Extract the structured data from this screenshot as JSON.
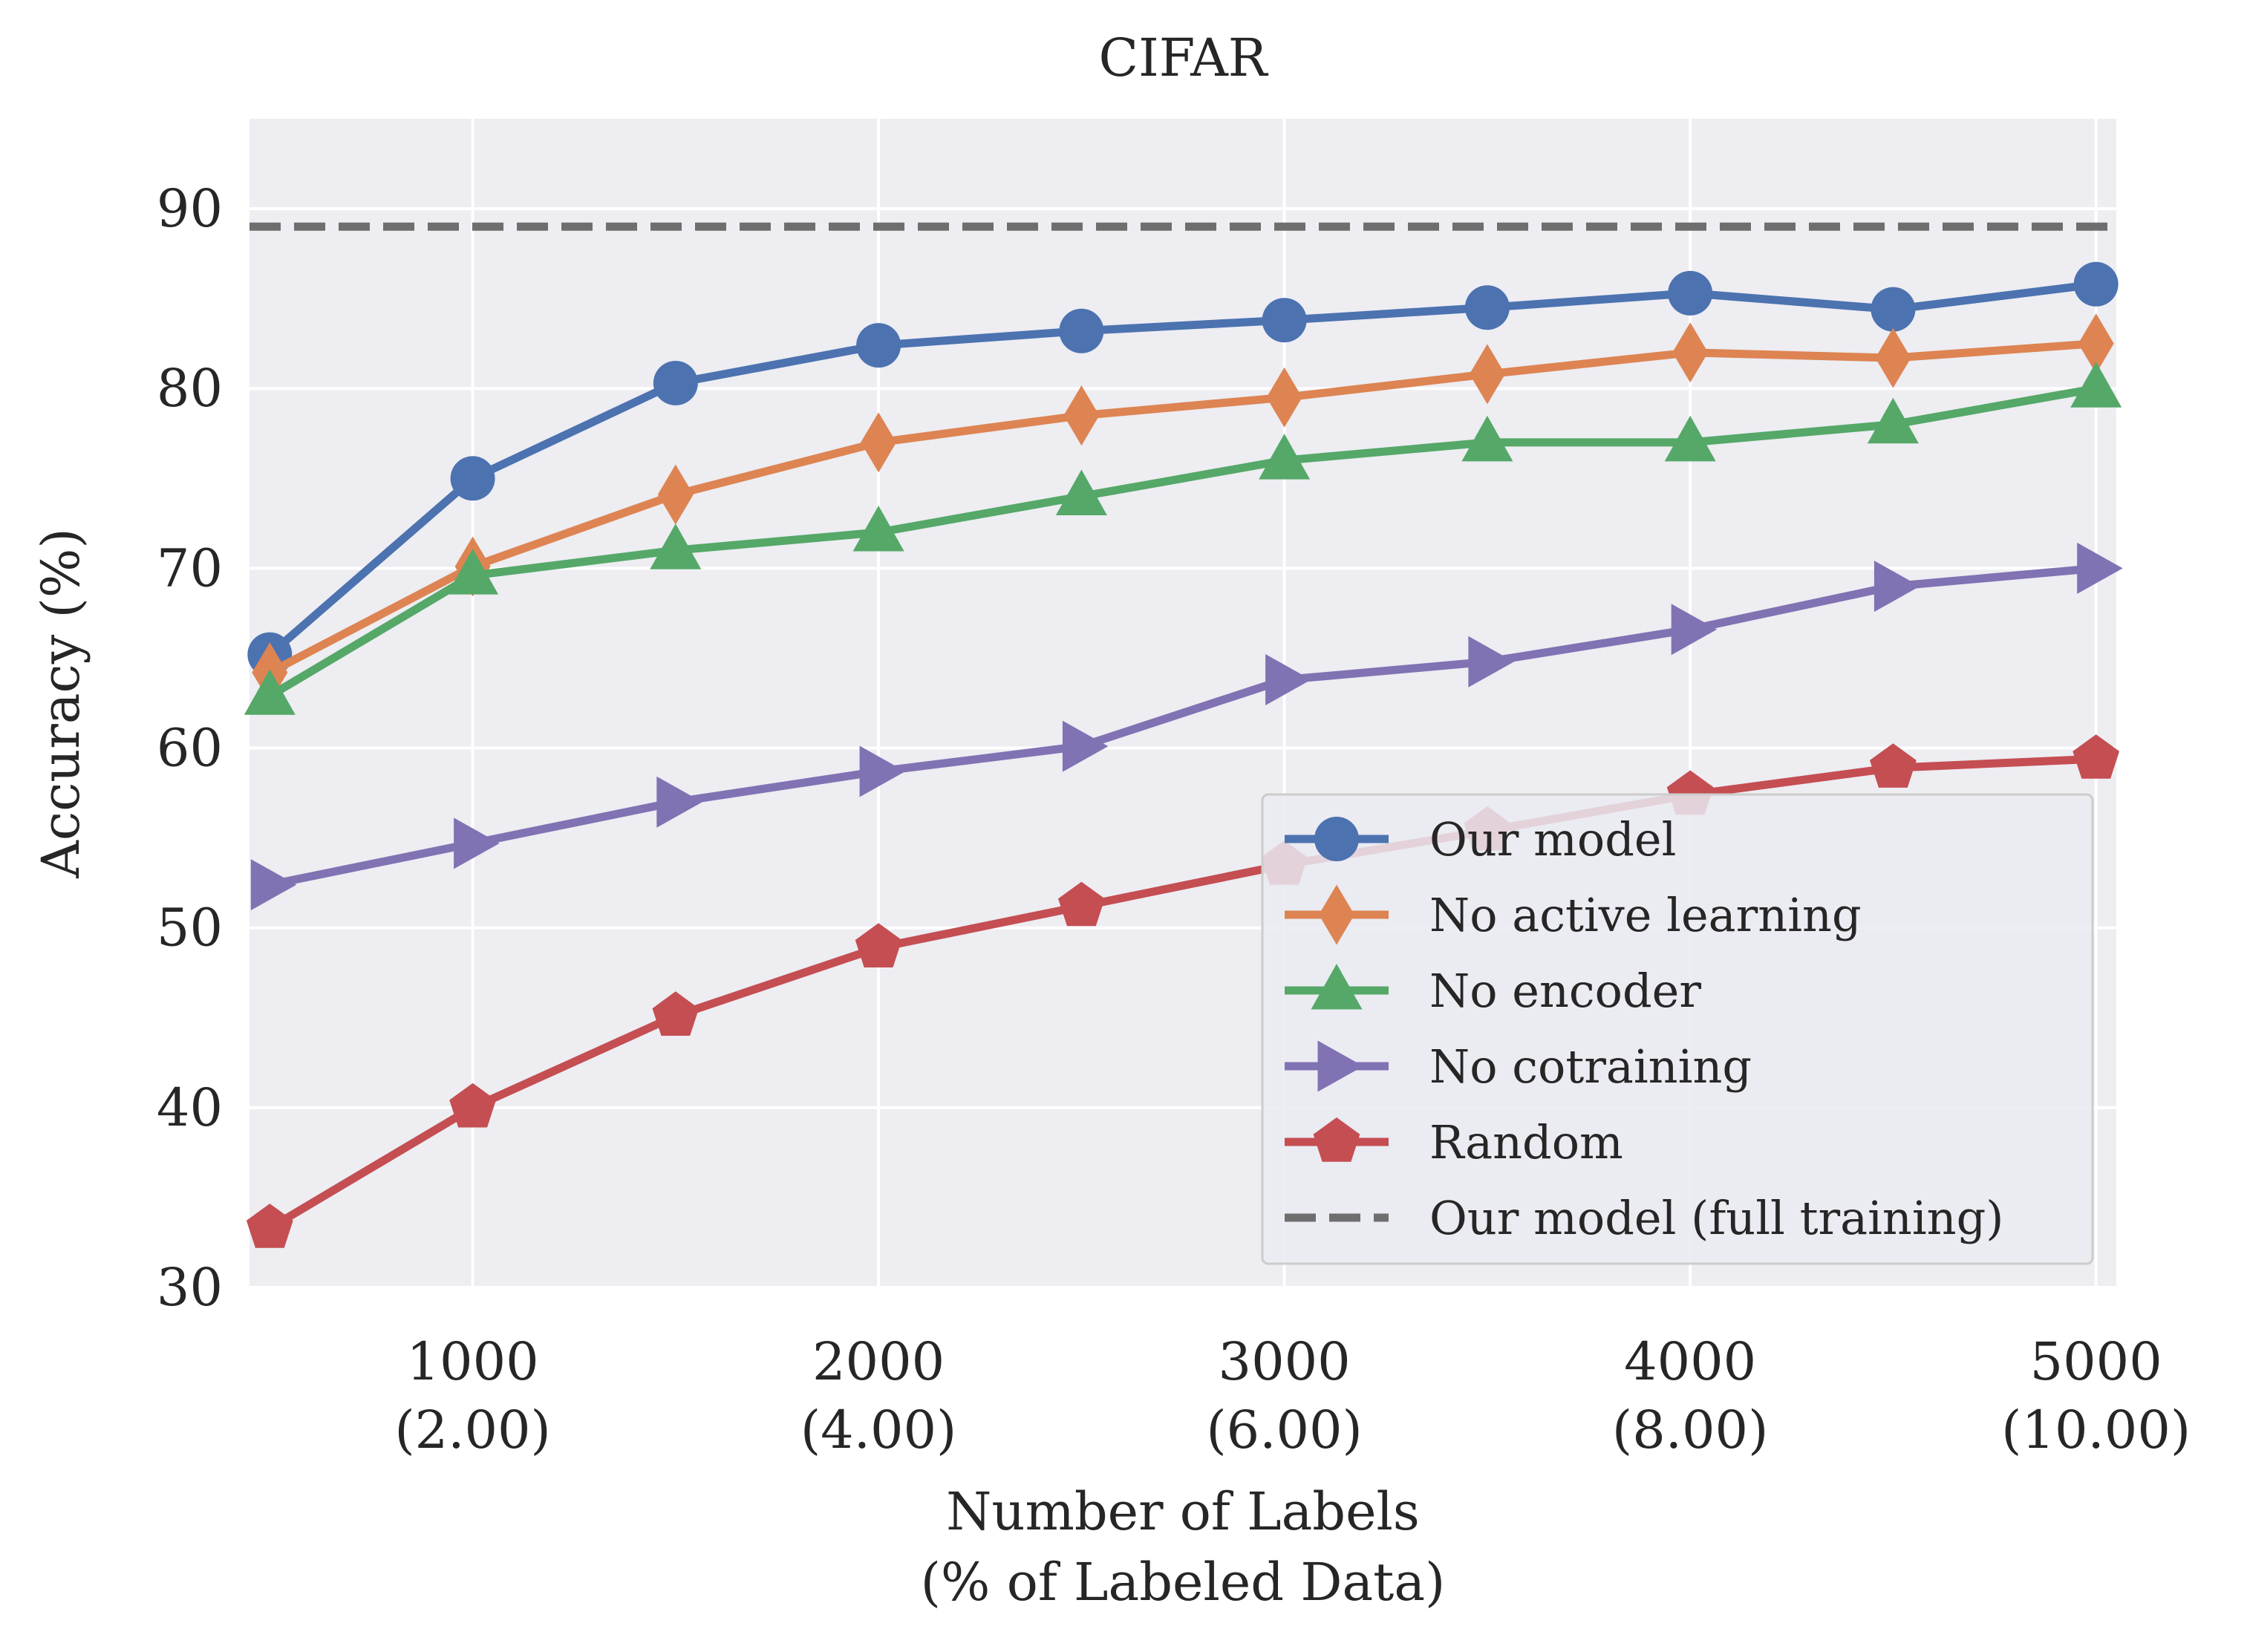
{
  "chart_data": {
    "type": "line",
    "title": "CIFAR",
    "xlabel": [
      "Number of Labels",
      "(% of Labeled Data)"
    ],
    "ylabel": "Accuracy (%)",
    "xlim": [
      450,
      5050
    ],
    "ylim": [
      30,
      95
    ],
    "grid": true,
    "legend_position": "lower-right",
    "xticks": [
      {
        "value": 1000,
        "label": "1000",
        "sublabel": "(2.00)"
      },
      {
        "value": 2000,
        "label": "2000",
        "sublabel": "(4.00)"
      },
      {
        "value": 3000,
        "label": "3000",
        "sublabel": "(6.00)"
      },
      {
        "value": 4000,
        "label": "4000",
        "sublabel": "(8.00)"
      },
      {
        "value": 5000,
        "label": "5000",
        "sublabel": "(10.00)"
      }
    ],
    "yticks": [
      30,
      40,
      50,
      60,
      70,
      80,
      90
    ],
    "x": [
      500,
      1000,
      1500,
      2000,
      2500,
      3000,
      3500,
      4000,
      4500,
      5000
    ],
    "series": [
      {
        "name": "Our model",
        "color": "#4c72b0",
        "marker": "circle",
        "values": [
          65.2,
          75.0,
          80.3,
          82.4,
          83.2,
          83.8,
          84.5,
          85.3,
          84.4,
          85.8
        ]
      },
      {
        "name": "No active learning",
        "color": "#dd8452",
        "marker": "diamond",
        "values": [
          64.2,
          70.1,
          74.1,
          77.0,
          78.5,
          79.5,
          80.8,
          82.0,
          81.7,
          82.5
        ]
      },
      {
        "name": "No encoder",
        "color": "#55a868",
        "marker": "triangle-up",
        "values": [
          62.9,
          69.6,
          71.0,
          72.0,
          74.0,
          76.0,
          77.0,
          77.0,
          78.0,
          80.0
        ]
      },
      {
        "name": "No cotraining",
        "color": "#8172b3",
        "marker": "triangle-right",
        "values": [
          52.4,
          54.7,
          57.0,
          58.7,
          60.1,
          63.8,
          64.8,
          66.6,
          69.0,
          70.0
        ]
      },
      {
        "name": "Random",
        "color": "#c44e52",
        "marker": "pentagon",
        "values": [
          33.3,
          40.0,
          45.1,
          48.9,
          51.2,
          53.5,
          55.4,
          57.4,
          58.9,
          59.4
        ]
      }
    ],
    "reference_lines": [
      {
        "name": "Our model (full training)",
        "color": "#6e6e6e",
        "style": "dashed",
        "y": 89.0
      }
    ]
  }
}
